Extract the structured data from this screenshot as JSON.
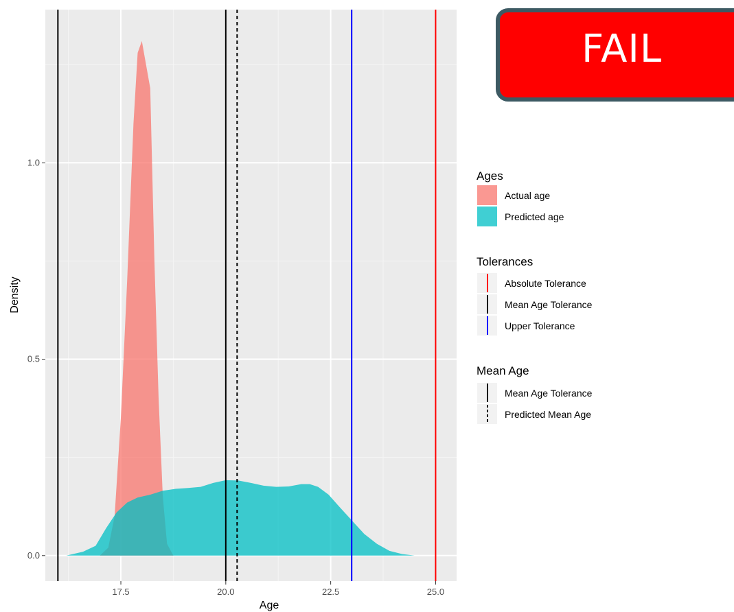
{
  "status_badge": {
    "label": "FAIL",
    "color": "#ff0000",
    "border_color": "#3d5a63"
  },
  "chart_data": {
    "type": "area",
    "title": "",
    "xlabel": "Age",
    "ylabel": "Density",
    "xlim": [
      15.7,
      25.5
    ],
    "ylim": [
      -0.065,
      1.39
    ],
    "x_ticks": [
      17.5,
      20.0,
      22.5,
      25.0
    ],
    "x_tick_labels": [
      "17.5",
      "20.0",
      "22.5",
      "25.0"
    ],
    "y_ticks": [
      0.0,
      0.5,
      1.0
    ],
    "y_tick_labels": [
      "0.0",
      "0.5",
      "1.0"
    ],
    "x_minor_ticks": [
      16.25,
      18.75,
      21.25,
      23.75
    ],
    "y_minor_ticks": [
      0.25,
      0.75,
      1.25
    ],
    "grid": true,
    "panel_background": "#ebebeb",
    "series": [
      {
        "name": "Actual age",
        "color": "#f8766d",
        "points": [
          [
            17.0,
            0.0
          ],
          [
            17.2,
            0.02
          ],
          [
            17.35,
            0.1
          ],
          [
            17.5,
            0.35
          ],
          [
            17.65,
            0.7
          ],
          [
            17.8,
            1.1
          ],
          [
            17.9,
            1.28
          ],
          [
            18.0,
            1.31
          ],
          [
            18.1,
            1.25
          ],
          [
            18.2,
            1.19
          ],
          [
            18.3,
            0.75
          ],
          [
            18.4,
            0.4
          ],
          [
            18.5,
            0.15
          ],
          [
            18.6,
            0.03
          ],
          [
            18.75,
            0.0
          ]
        ]
      },
      {
        "name": "Predicted age",
        "color": "#00bfc4",
        "points": [
          [
            16.2,
            0.0
          ],
          [
            16.6,
            0.01
          ],
          [
            16.9,
            0.025
          ],
          [
            17.15,
            0.07
          ],
          [
            17.4,
            0.11
          ],
          [
            17.65,
            0.135
          ],
          [
            17.9,
            0.148
          ],
          [
            18.2,
            0.155
          ],
          [
            18.5,
            0.165
          ],
          [
            18.8,
            0.17
          ],
          [
            19.1,
            0.172
          ],
          [
            19.4,
            0.175
          ],
          [
            19.7,
            0.185
          ],
          [
            20.0,
            0.192
          ],
          [
            20.3,
            0.191
          ],
          [
            20.6,
            0.185
          ],
          [
            20.9,
            0.178
          ],
          [
            21.2,
            0.175
          ],
          [
            21.5,
            0.176
          ],
          [
            21.8,
            0.182
          ],
          [
            22.0,
            0.182
          ],
          [
            22.2,
            0.175
          ],
          [
            22.45,
            0.155
          ],
          [
            22.7,
            0.125
          ],
          [
            23.0,
            0.09
          ],
          [
            23.3,
            0.055
          ],
          [
            23.6,
            0.03
          ],
          [
            23.9,
            0.012
          ],
          [
            24.2,
            0.004
          ],
          [
            24.5,
            0.0
          ]
        ]
      }
    ],
    "vlines": [
      {
        "x": 16.0,
        "color": "#000000",
        "dash": false
      },
      {
        "x": 20.0,
        "color": "#000000",
        "dash": false
      },
      {
        "x": 20.27,
        "color": "#000000",
        "dash": true
      },
      {
        "x": 23.0,
        "color": "#0000ff",
        "dash": false
      },
      {
        "x": 25.0,
        "color": "#ff0000",
        "dash": false
      }
    ]
  },
  "legend": {
    "ages": {
      "title": "Ages",
      "items": [
        {
          "label": "Actual age",
          "color": "#f8766d"
        },
        {
          "label": "Predicted age",
          "color": "#00bfc4"
        }
      ]
    },
    "tolerances": {
      "title": "Tolerances",
      "items": [
        {
          "label": "Absolute Tolerance",
          "color": "#ff0000",
          "dash": false
        },
        {
          "label": "Mean Age Tolerance",
          "color": "#000000",
          "dash": false
        },
        {
          "label": "Upper Tolerance",
          "color": "#0000ff",
          "dash": false
        }
      ]
    },
    "mean_age": {
      "title": "Mean Age",
      "items": [
        {
          "label": "Mean Age Tolerance",
          "color": "#000000",
          "dash": false
        },
        {
          "label": "Predicted Mean Age",
          "color": "#000000",
          "dash": true
        }
      ]
    }
  }
}
